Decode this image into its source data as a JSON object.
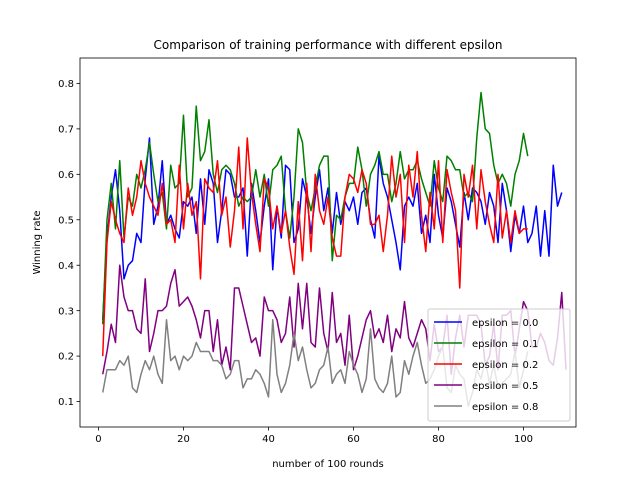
{
  "chart_data": {
    "type": "line",
    "title": "Comparison of training performance with different epsilon",
    "xlabel": "number of 100 rounds",
    "ylabel": "Winning rate",
    "xlim": [
      -4.35,
      112.35
    ],
    "ylim": [
      0.044,
      0.856
    ],
    "xticks": [
      0,
      20,
      40,
      60,
      80,
      100
    ],
    "xtick_labels": [
      "0",
      "20",
      "40",
      "60",
      "80",
      "100"
    ],
    "yticks": [
      0.1,
      0.2,
      0.3,
      0.4,
      0.5,
      0.6,
      0.7,
      0.8
    ],
    "ytick_labels": [
      "0.1",
      "0.2",
      "0.3",
      "0.4",
      "0.5",
      "0.6",
      "0.7",
      "0.8"
    ],
    "grid": false,
    "legend_position": "lower right",
    "series": [
      {
        "name": "epsilon = 0.0",
        "color": "#0000ff",
        "values": [
          0.28,
          0.46,
          0.55,
          0.61,
          0.52,
          0.37,
          0.4,
          0.41,
          0.47,
          0.45,
          0.59,
          0.68,
          0.49,
          0.53,
          0.63,
          0.49,
          0.51,
          0.48,
          0.46,
          0.54,
          0.53,
          0.55,
          0.47,
          0.59,
          0.49,
          0.61,
          0.58,
          0.45,
          0.52,
          0.61,
          0.6,
          0.55,
          0.55,
          0.57,
          0.42,
          0.58,
          0.52,
          0.45,
          0.53,
          0.59,
          0.39,
          0.53,
          0.46,
          0.62,
          0.61,
          0.45,
          0.48,
          0.59,
          0.55,
          0.47,
          0.55,
          0.61,
          0.52,
          0.57,
          0.47,
          0.56,
          0.49,
          0.54,
          0.52,
          0.55,
          0.49,
          0.56,
          0.57,
          0.5,
          0.46,
          0.64,
          0.58,
          0.55,
          0.5,
          0.45,
          0.39,
          0.53,
          0.55,
          0.53,
          0.58,
          0.47,
          0.51,
          0.45,
          0.6,
          0.51,
          0.46,
          0.57,
          0.54,
          0.49,
          0.44,
          0.56,
          0.5,
          0.57,
          0.56,
          0.54,
          0.49,
          0.56,
          0.53,
          0.45,
          0.58,
          0.52,
          0.43,
          0.51,
          0.47,
          0.53,
          0.45,
          0.47,
          0.53,
          0.42,
          0.52,
          0.42,
          0.62,
          0.53,
          0.56
        ]
      },
      {
        "name": "epsilon = 0.1",
        "color": "#008000",
        "values": [
          0.27,
          0.5,
          0.58,
          0.48,
          0.63,
          0.46,
          0.55,
          0.53,
          0.6,
          0.57,
          0.61,
          0.67,
          0.6,
          0.54,
          0.56,
          0.48,
          0.62,
          0.57,
          0.58,
          0.73,
          0.55,
          0.57,
          0.75,
          0.63,
          0.65,
          0.72,
          0.6,
          0.56,
          0.61,
          0.62,
          0.61,
          0.58,
          0.53,
          0.55,
          0.54,
          0.55,
          0.61,
          0.55,
          0.6,
          0.53,
          0.61,
          0.62,
          0.64,
          0.52,
          0.46,
          0.55,
          0.7,
          0.67,
          0.56,
          0.52,
          0.57,
          0.62,
          0.64,
          0.64,
          0.41,
          0.51,
          0.5,
          0.55,
          0.58,
          0.58,
          0.66,
          0.61,
          0.53,
          0.6,
          0.62,
          0.65,
          0.6,
          0.6,
          0.54,
          0.58,
          0.65,
          0.59,
          0.61,
          0.61,
          0.63,
          0.59,
          0.56,
          0.53,
          0.63,
          0.57,
          0.54,
          0.64,
          0.63,
          0.61,
          0.61,
          0.55,
          0.56,
          0.54,
          0.68,
          0.78,
          0.7,
          0.69,
          0.62,
          0.58,
          0.6,
          0.58,
          0.53,
          0.6,
          0.63,
          0.69,
          0.64
        ]
      },
      {
        "name": "epsilon = 0.2",
        "color": "#ff0000",
        "values": [
          0.2,
          0.45,
          0.54,
          0.5,
          0.47,
          0.45,
          0.57,
          0.51,
          0.55,
          0.63,
          0.58,
          0.55,
          0.53,
          0.51,
          0.58,
          0.49,
          0.5,
          0.45,
          0.62,
          0.48,
          0.58,
          0.51,
          0.54,
          0.37,
          0.59,
          0.57,
          0.56,
          0.63,
          0.51,
          0.55,
          0.44,
          0.52,
          0.66,
          0.48,
          0.68,
          0.56,
          0.49,
          0.43,
          0.59,
          0.57,
          0.48,
          0.53,
          0.47,
          0.52,
          0.44,
          0.38,
          0.54,
          0.41,
          0.58,
          0.43,
          0.6,
          0.52,
          0.49,
          0.55,
          0.46,
          0.42,
          0.42,
          0.55,
          0.6,
          0.59,
          0.56,
          0.61,
          0.58,
          0.49,
          0.49,
          0.51,
          0.43,
          0.51,
          0.64,
          0.55,
          0.6,
          0.45,
          0.62,
          0.55,
          0.65,
          0.51,
          0.43,
          0.56,
          0.48,
          0.63,
          0.45,
          0.61,
          0.56,
          0.52,
          0.35,
          0.6,
          0.55,
          0.62,
          0.48,
          0.61,
          0.54,
          0.49,
          0.45,
          0.6,
          0.46,
          0.52,
          0.45,
          0.52,
          0.47,
          0.48,
          0.48
        ]
      },
      {
        "name": "epsilon = 0.5",
        "color": "#800080",
        "values": [
          0.16,
          0.21,
          0.27,
          0.23,
          0.4,
          0.33,
          0.3,
          0.3,
          0.26,
          0.25,
          0.37,
          0.21,
          0.25,
          0.3,
          0.3,
          0.31,
          0.36,
          0.39,
          0.31,
          0.32,
          0.33,
          0.31,
          0.28,
          0.24,
          0.3,
          0.3,
          0.21,
          0.28,
          0.18,
          0.22,
          0.17,
          0.35,
          0.35,
          0.31,
          0.27,
          0.23,
          0.24,
          0.2,
          0.33,
          0.3,
          0.3,
          0.28,
          0.23,
          0.25,
          0.33,
          0.22,
          0.36,
          0.26,
          0.36,
          0.23,
          0.22,
          0.35,
          0.25,
          0.21,
          0.34,
          0.23,
          0.25,
          0.18,
          0.29,
          0.17,
          0.2,
          0.24,
          0.28,
          0.3,
          0.24,
          0.26,
          0.23,
          0.29,
          0.21,
          0.26,
          0.24,
          0.32,
          0.24,
          0.22,
          0.25,
          0.28,
          0.26,
          0.19,
          0.27,
          0.21,
          0.22,
          0.29,
          0.16,
          0.24,
          0.29,
          0.22,
          0.29,
          0.29,
          0.29,
          0.27,
          0.18,
          0.2,
          0.27,
          0.17,
          0.29,
          0.29,
          0.3,
          0.2,
          0.26,
          0.32,
          0.3,
          0.22,
          0.22,
          0.25,
          0.23,
          0.19,
          0.18,
          0.24,
          0.34,
          0.17
        ]
      },
      {
        "name": "epsilon = 0.8",
        "color": "#808080",
        "values": [
          0.12,
          0.17,
          0.17,
          0.17,
          0.19,
          0.18,
          0.2,
          0.13,
          0.12,
          0.16,
          0.19,
          0.17,
          0.2,
          0.16,
          0.14,
          0.28,
          0.19,
          0.2,
          0.17,
          0.2,
          0.19,
          0.2,
          0.23,
          0.21,
          0.21,
          0.21,
          0.19,
          0.19,
          0.18,
          0.15,
          0.16,
          0.19,
          0.19,
          0.13,
          0.15,
          0.15,
          0.17,
          0.16,
          0.14,
          0.11,
          0.28,
          0.16,
          0.12,
          0.14,
          0.18,
          0.25,
          0.19,
          0.22,
          0.17,
          0.13,
          0.14,
          0.17,
          0.18,
          0.22,
          0.14,
          0.16,
          0.17,
          0.14,
          0.21,
          0.18,
          0.16,
          0.12,
          0.15,
          0.26,
          0.15,
          0.13,
          0.12,
          0.14,
          0.2,
          0.11,
          0.12,
          0.19,
          0.16,
          0.2,
          0.23,
          0.18,
          0.14,
          0.15,
          0.17,
          0.2,
          0.22,
          0.13,
          0.12,
          0.18,
          0.16,
          0.15,
          0.09,
          0.12,
          0.17,
          0.15,
          0.19,
          0.14,
          0.18,
          0.13,
          0.14,
          0.15,
          0.16,
          0.21,
          0.13,
          0.17,
          0.21
        ]
      }
    ]
  }
}
